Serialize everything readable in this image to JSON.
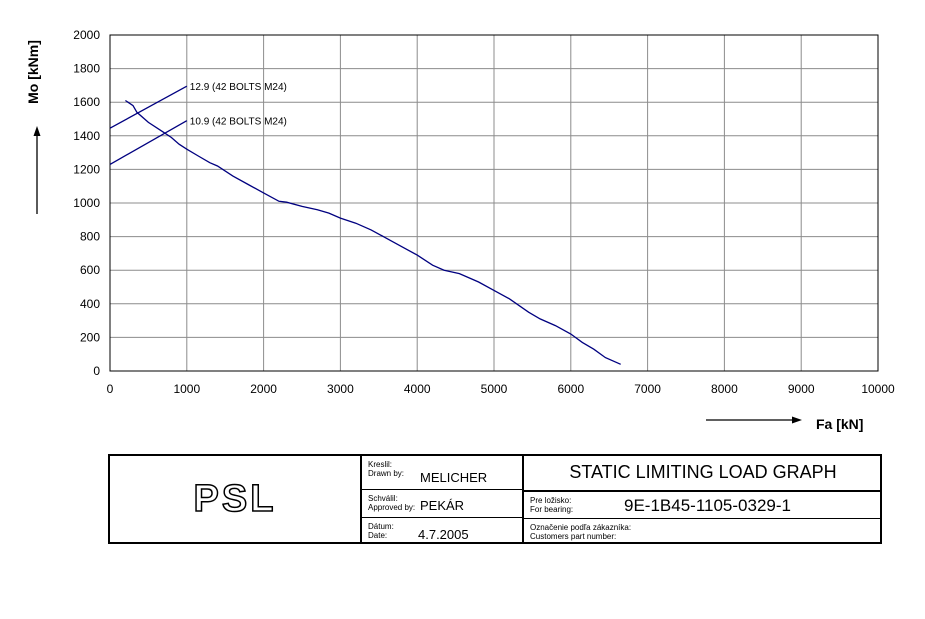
{
  "chart_data": {
    "type": "line",
    "xlabel": "Fa [kN]",
    "ylabel": "Mo [kNm]",
    "xlim": [
      0,
      10000
    ],
    "ylim": [
      0,
      2000
    ],
    "x_ticks": [
      "0",
      "1000",
      "2000",
      "3000",
      "4000",
      "5000",
      "6000",
      "7000",
      "8000",
      "9000",
      "10000"
    ],
    "y_ticks": [
      "0",
      "200",
      "400",
      "600",
      "800",
      "1000",
      "1200",
      "1400",
      "1600",
      "1800",
      "2000"
    ],
    "grid": true,
    "series": [
      {
        "name": "",
        "x": [
          200,
          300,
          350,
          500,
          700,
          800,
          900,
          1000,
          1150,
          1300,
          1400,
          1600,
          1800,
          2000,
          2200,
          2300,
          2500,
          2700,
          2850,
          3000,
          3200,
          3400,
          3600,
          3800,
          4000,
          4200,
          4350,
          4550,
          4800,
          5000,
          5200,
          5450,
          5600,
          5800,
          6000,
          6150,
          6300,
          6450,
          6650
        ],
        "y": [
          1610,
          1580,
          1540,
          1480,
          1420,
          1390,
          1350,
          1320,
          1280,
          1240,
          1220,
          1160,
          1110,
          1060,
          1010,
          1005,
          980,
          960,
          940,
          910,
          880,
          840,
          790,
          740,
          690,
          630,
          600,
          580,
          530,
          480,
          430,
          350,
          310,
          270,
          220,
          170,
          130,
          80,
          40
        ]
      },
      {
        "name": "12.9 (42 BOLTS M24)",
        "x": [
          0,
          1000
        ],
        "y": [
          1445,
          1695
        ]
      },
      {
        "name": "10.9 (42 BOLTS M24)",
        "x": [
          0,
          1000
        ],
        "y": [
          1230,
          1490
        ]
      }
    ]
  },
  "title_block": {
    "logo": "PSL",
    "drawn_by_label_1": "Kreslil:",
    "drawn_by_label_2": "Drawn by:",
    "drawn_by": "MELICHER",
    "approved_by_label_1": "Schválil:",
    "approved_by_label_2": "Approved by:",
    "approved_by": "PEKÁR",
    "date_label_1": "Dátum:",
    "date_label_2": "Date:",
    "date": "4.7.2005",
    "title": "STATIC LIMITING LOAD GRAPH",
    "bearing_label_1": "Pre ložisko:",
    "bearing_label_2": "For bearing:",
    "bearing": "9E-1B45-1105-0329-1",
    "customer_label_1": "Označenie podľa zákazníka:",
    "customer_label_2": "Customers part number:",
    "customer": ""
  }
}
